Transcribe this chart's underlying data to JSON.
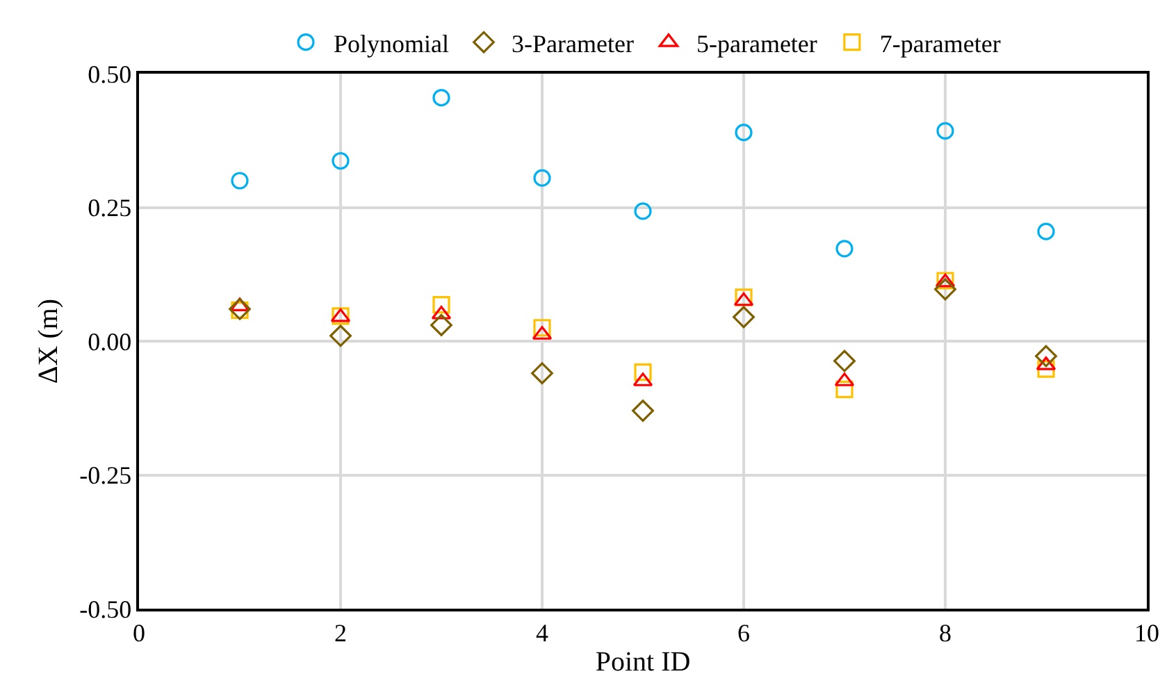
{
  "chart_data": {
    "type": "scatter",
    "xlabel": "Point ID",
    "ylabel": "ΔX (m)",
    "x": [
      1,
      2,
      3,
      4,
      5,
      6,
      7,
      8,
      9
    ],
    "series": [
      {
        "name": "Polynomial",
        "color": "#00b0f0",
        "marker": "circle",
        "values": [
          0.3,
          0.337,
          0.455,
          0.305,
          0.243,
          0.39,
          0.173,
          0.393,
          0.205
        ]
      },
      {
        "name": "3-Parameter",
        "color": "#7f6000",
        "marker": "diamond",
        "values": [
          0.06,
          0.01,
          0.03,
          -0.06,
          -0.13,
          0.045,
          -0.037,
          0.097,
          -0.028
        ]
      },
      {
        "name": "5-parameter",
        "color": "#ff0000",
        "marker": "triangle",
        "values": [
          0.065,
          0.045,
          0.05,
          0.012,
          -0.075,
          0.075,
          -0.075,
          0.11,
          -0.045
        ]
      },
      {
        "name": "7-parameter",
        "color": "#ffc000",
        "marker": "square",
        "values": [
          0.058,
          0.047,
          0.068,
          0.025,
          -0.058,
          0.082,
          -0.09,
          0.113,
          -0.052
        ]
      }
    ],
    "xlim": [
      0,
      10
    ],
    "xticks": [
      0,
      2,
      4,
      6,
      8,
      10
    ],
    "ylim": [
      -0.5,
      0.5
    ],
    "yticks": [
      {
        "value": -0.5,
        "label": "-0.50"
      },
      {
        "value": -0.25,
        "label": "-0.25"
      },
      {
        "value": 0,
        "label": "0.00"
      },
      {
        "value": 0.25,
        "label": "0.25"
      },
      {
        "value": 0.5,
        "label": "0.50"
      }
    ],
    "grid": true,
    "legend": "top"
  }
}
